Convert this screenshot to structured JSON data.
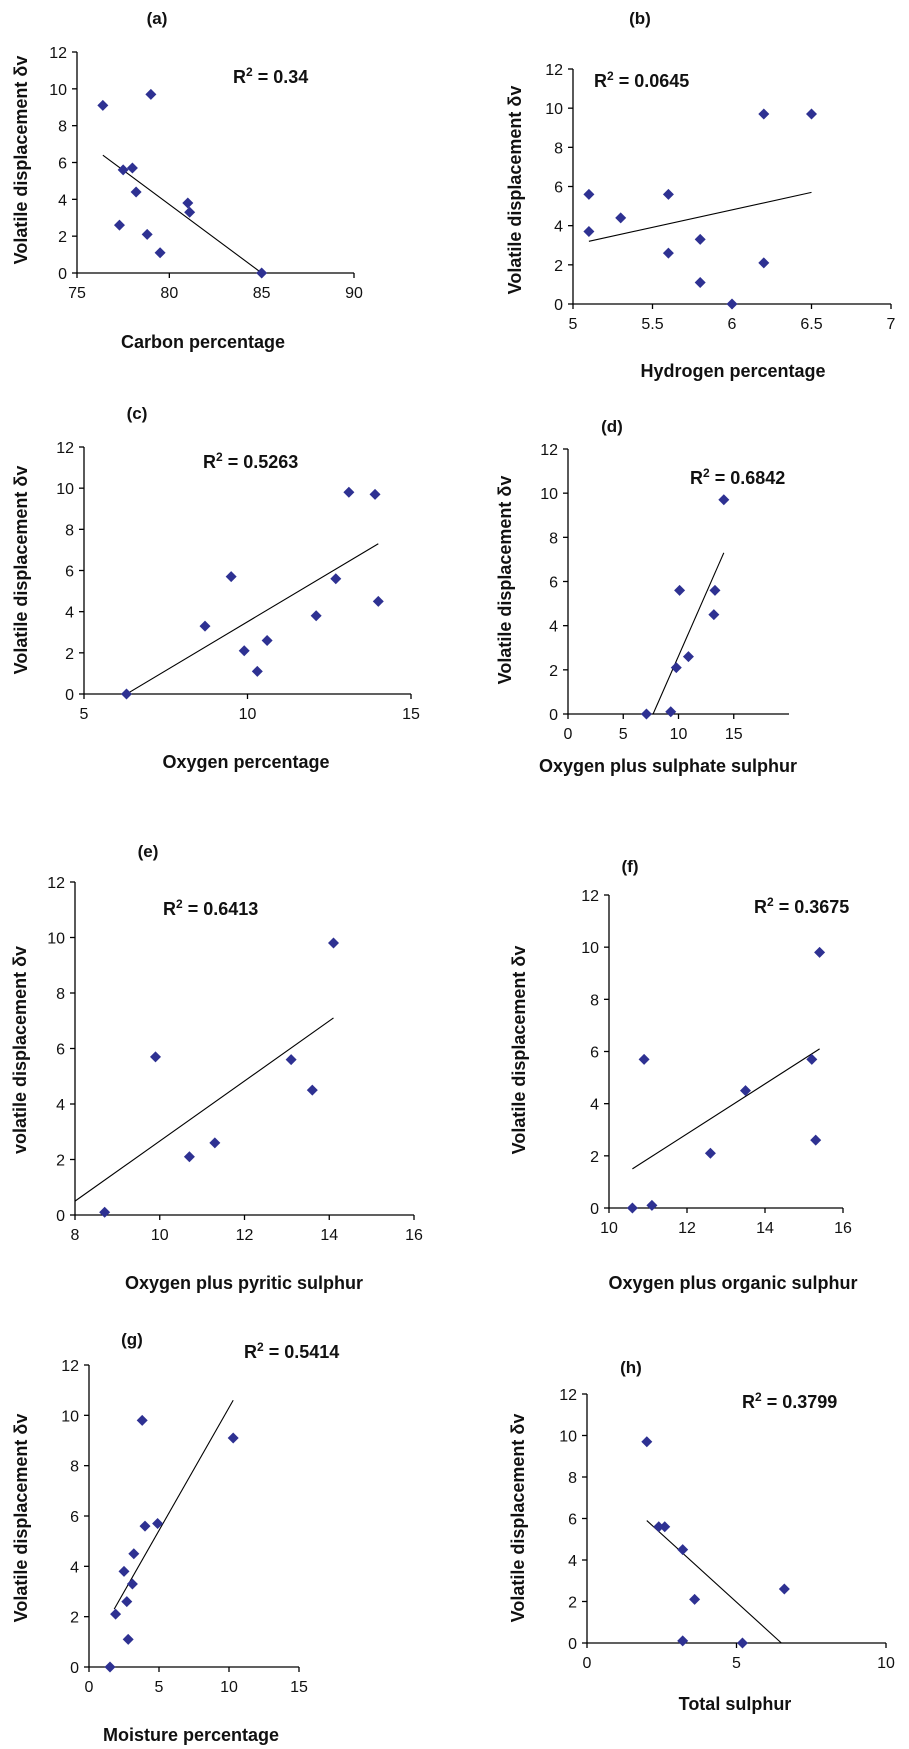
{
  "chart_data": [
    {
      "type": "scatter",
      "panel": "(a)",
      "annotation": "R² = 0.34",
      "xlabel": "Carbon percentage",
      "ylabel": "Volatile displacement δv",
      "xlim": [
        75,
        90
      ],
      "ylim": [
        0,
        12
      ],
      "xticks": [
        75,
        80,
        85,
        90
      ],
      "yticks": [
        0,
        2,
        4,
        6,
        8,
        10,
        12
      ],
      "x": [
        76.4,
        77.3,
        77.5,
        78.0,
        78.2,
        78.8,
        79.0,
        79.5,
        81.0,
        81.1,
        85.0
      ],
      "y": [
        9.1,
        2.6,
        5.6,
        5.7,
        4.4,
        2.1,
        9.7,
        1.1,
        3.8,
        3.3,
        0.0
      ],
      "trendline": [
        [
          76.4,
          6.4
        ],
        [
          85.0,
          0.0
        ]
      ],
      "grid": false
    },
    {
      "type": "scatter",
      "panel": "(b)",
      "annotation": "R² = 0.0645",
      "xlabel": "Hydrogen percentage",
      "ylabel": "Volatile displacement δv",
      "xlim": [
        5,
        7
      ],
      "ylim": [
        0,
        12
      ],
      "xticks": [
        5,
        5.5,
        6,
        6.5,
        7
      ],
      "yticks": [
        0,
        2,
        4,
        6,
        8,
        10,
        12
      ],
      "x": [
        5.1,
        5.1,
        5.3,
        5.6,
        5.6,
        5.8,
        5.8,
        6.0,
        6.2,
        6.2,
        6.5
      ],
      "y": [
        5.6,
        3.7,
        4.4,
        5.6,
        2.6,
        3.3,
        1.1,
        0.0,
        9.7,
        2.1,
        9.7
      ],
      "trendline": [
        [
          5.1,
          3.2
        ],
        [
          6.5,
          5.7
        ]
      ],
      "grid": false
    },
    {
      "type": "scatter",
      "panel": "(c)",
      "annotation": "R² = 0.5263",
      "xlabel": "Oxygen  percentage",
      "ylabel": "Volatile displacement δv",
      "xlim": [
        5,
        15
      ],
      "ylim": [
        0,
        12
      ],
      "xticks": [
        5,
        10,
        15
      ],
      "yticks": [
        0,
        2,
        4,
        6,
        8,
        10,
        12
      ],
      "x": [
        6.3,
        8.7,
        9.5,
        9.9,
        10.3,
        10.6,
        12.1,
        12.7,
        13.1,
        13.9,
        14.0
      ],
      "y": [
        0.0,
        3.3,
        5.7,
        2.1,
        1.1,
        2.6,
        3.8,
        5.6,
        9.8,
        9.7,
        4.5
      ],
      "trendline": [
        [
          6.3,
          0.0
        ],
        [
          14.0,
          7.3
        ]
      ],
      "grid": false
    },
    {
      "type": "scatter",
      "panel": "(d)",
      "annotation": "R² = 0.6842",
      "xlabel": "Oxygen plus sulphate sulphur",
      "ylabel": "Volatile displacement δv",
      "xlim": [
        0,
        20
      ],
      "ylim": [
        0,
        12
      ],
      "xticks": [
        0,
        5,
        10,
        15
      ],
      "yticks": [
        0,
        2,
        4,
        6,
        8,
        10,
        12
      ],
      "x": [
        7.1,
        9.3,
        9.8,
        10.1,
        10.9,
        13.2,
        13.3,
        14.1
      ],
      "y": [
        0.0,
        0.1,
        2.1,
        5.6,
        2.6,
        4.5,
        5.6,
        9.7
      ],
      "trendline": [
        [
          7.7,
          0.0
        ],
        [
          14.1,
          7.3
        ]
      ],
      "grid": false
    },
    {
      "type": "scatter",
      "panel": "(e)",
      "annotation": "R² = 0.6413",
      "xlabel": "Oxygen plus pyritic sulphur",
      "ylabel": "volatile displacement δv",
      "xlim": [
        8,
        16
      ],
      "ylim": [
        0,
        12
      ],
      "xticks": [
        8,
        10,
        12,
        14,
        16
      ],
      "yticks": [
        0,
        2,
        4,
        6,
        8,
        10,
        12
      ],
      "x": [
        8.7,
        9.9,
        10.7,
        11.3,
        13.1,
        13.6,
        14.1
      ],
      "y": [
        0.1,
        5.7,
        2.1,
        2.6,
        5.6,
        4.5,
        9.8
      ],
      "trendline": [
        [
          8.0,
          0.5
        ],
        [
          14.1,
          7.1
        ]
      ],
      "grid": false
    },
    {
      "type": "scatter",
      "panel": "(f)",
      "annotation": "R² = 0.3675",
      "xlabel": "Oxygen plus organic sulphur",
      "ylabel": "Volatile displacement δv",
      "xlim": [
        10,
        16
      ],
      "ylim": [
        0,
        12
      ],
      "xticks": [
        10,
        12,
        14,
        16
      ],
      "yticks": [
        0,
        2,
        4,
        6,
        8,
        10,
        12
      ],
      "x": [
        10.6,
        10.9,
        11.1,
        12.6,
        13.5,
        15.2,
        15.3,
        15.4
      ],
      "y": [
        0.0,
        5.7,
        0.1,
        2.1,
        4.5,
        5.7,
        2.6,
        9.8
      ],
      "trendline": [
        [
          10.6,
          1.5
        ],
        [
          15.4,
          6.1
        ]
      ],
      "grid": false
    },
    {
      "type": "scatter",
      "panel": "(g)",
      "annotation": "R² = 0.5414",
      "xlabel": "Moisture percentage",
      "ylabel": "Volatile displacement δv",
      "xlim": [
        0,
        15
      ],
      "ylim": [
        0,
        12
      ],
      "xticks": [
        0,
        5,
        10,
        15
      ],
      "yticks": [
        0,
        2,
        4,
        6,
        8,
        10,
        12
      ],
      "x": [
        1.5,
        1.9,
        2.5,
        2.7,
        2.8,
        3.1,
        3.2,
        3.8,
        4.0,
        4.9,
        10.3
      ],
      "y": [
        0.0,
        2.1,
        3.8,
        2.6,
        1.1,
        3.3,
        4.5,
        9.8,
        5.6,
        5.7,
        9.1
      ],
      "trendline": [
        [
          1.8,
          2.3
        ],
        [
          10.3,
          10.6
        ]
      ],
      "grid": false
    },
    {
      "type": "scatter",
      "panel": "(h)",
      "annotation": "R² = 0.3799",
      "xlabel": "Total sulphur",
      "ylabel": "Volatile displacement δv",
      "xlim": [
        0,
        10
      ],
      "ylim": [
        0,
        12
      ],
      "xticks": [
        0,
        5,
        10
      ],
      "yticks": [
        0,
        2,
        4,
        6,
        8,
        10,
        12
      ],
      "x": [
        2.0,
        2.4,
        2.6,
        3.2,
        3.2,
        3.6,
        5.2,
        6.6
      ],
      "y": [
        9.7,
        5.6,
        5.6,
        4.5,
        0.1,
        2.1,
        0.0,
        2.6
      ],
      "trendline": [
        [
          2.0,
          5.9
        ],
        [
          6.5,
          0.0
        ]
      ],
      "grid": false
    }
  ],
  "colors": {
    "marker": "#2e3192",
    "line": "#000000",
    "axis": "#000000"
  }
}
